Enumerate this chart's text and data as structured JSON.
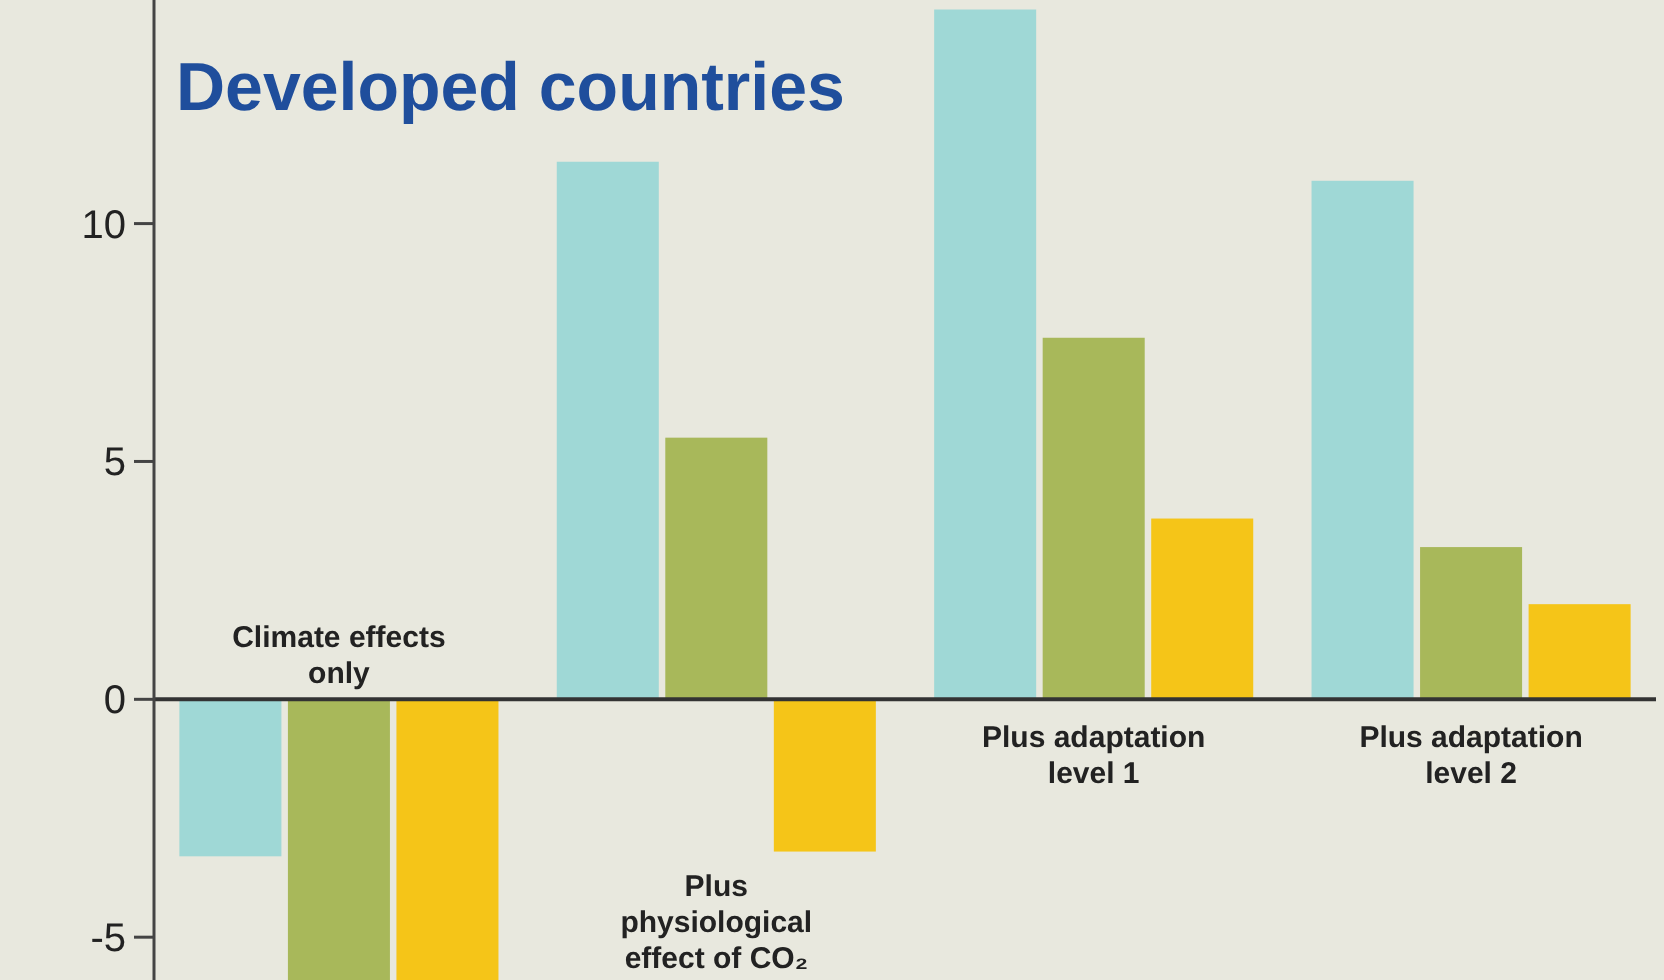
{
  "chart_data": {
    "type": "bar",
    "title": "Developed countries",
    "categories": [
      "Climate effects only",
      "Plus physiological effect of CO₂",
      "Plus adaptation level 1",
      "Plus adaptation level 2"
    ],
    "series": [
      {
        "color": "#9fd8d6",
        "values": [
          -3.3,
          11.3,
          14.5,
          10.9
        ]
      },
      {
        "color": "#a8b85a",
        "values": [
          -5.9,
          5.5,
          7.6,
          3.2
        ]
      },
      {
        "color": "#f5c518",
        "values": [
          -5.9,
          -3.2,
          3.8,
          2.0
        ]
      }
    ],
    "ylim": [
      -5.9,
      14.7
    ],
    "yticks": [
      -5,
      0,
      5,
      10
    ],
    "grid": false
  }
}
